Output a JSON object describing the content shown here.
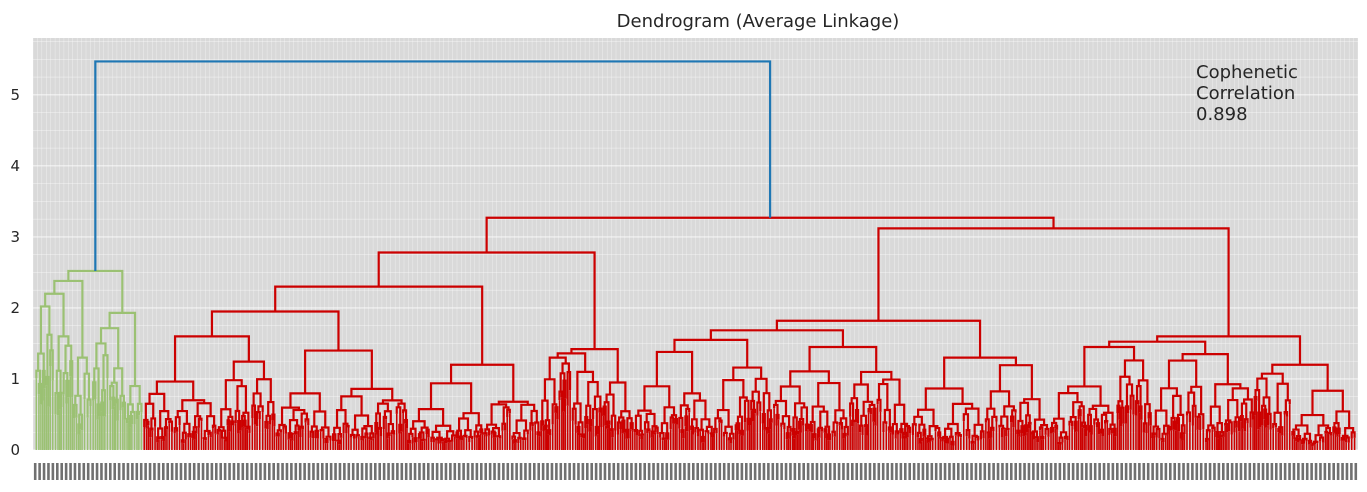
{
  "chart_data": {
    "type": "dendrogram",
    "title": "Dendrogram (Average Linkage)",
    "xlabel": "",
    "ylabel": "",
    "ylim": [
      0,
      5.8
    ],
    "yticks": [
      0,
      1,
      2,
      3,
      4,
      5
    ],
    "grid": true,
    "annotation": [
      "Cophenetic",
      "Correlation",
      "0.898"
    ],
    "colors": {
      "background": "#d9d9d9",
      "grid": "#ffffff",
      "top_link": "#1f77b4",
      "cluster_green": "#9bc173",
      "cluster_red": "#cc0000"
    },
    "root_height": 5.47,
    "clusters": [
      {
        "color": "green",
        "merge_height": 2.52,
        "subclusters": [
          {
            "height": 2.38,
            "children_heights": [
              2.02,
              1.6,
              1.3
            ]
          },
          {
            "height": 1.93,
            "children_heights": [
              1.5,
              1.15,
              0.9
            ]
          }
        ]
      },
      {
        "color": "red",
        "merge_height": 3.27,
        "subclusters": [
          {
            "height": 2.78,
            "children": [
              {
                "height": 2.3,
                "children_heights": [
                  1.6,
                  1.4,
                  1.2
                ]
              },
              {
                "height": 1.42,
                "children_heights": [
                  1.3,
                  1.1,
                  0.95
                ]
              }
            ]
          },
          {
            "height": 3.12,
            "children": [
              {
                "height": 1.82,
                "children_heights": [
                  1.55,
                  1.45,
                  1.3
                ]
              },
              {
                "height": 1.6,
                "children_heights": [
                  1.45,
                  1.35,
                  1.2
                ]
              }
            ]
          }
        ]
      }
    ]
  }
}
